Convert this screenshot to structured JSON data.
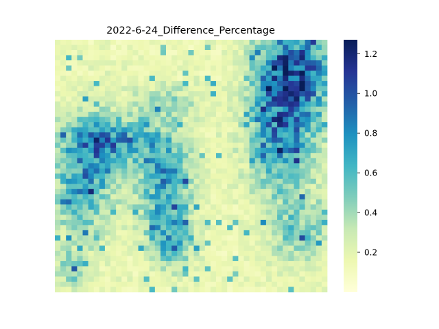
{
  "chart_data": {
    "type": "heatmap",
    "title": "2022-6-24_Difference_Percentage",
    "xlabel": "",
    "ylabel": "",
    "colormap": "YlGnBu",
    "colorbar": {
      "range": [
        0.0,
        1.27
      ],
      "ticks": [
        0.2,
        0.4,
        0.6,
        0.8,
        1.0,
        1.2
      ],
      "tick_labels": [
        "0.2",
        "0.4",
        "0.6",
        "0.8",
        "1.0",
        "1.2"
      ]
    },
    "grid_shape": [
      49,
      49
    ],
    "regions": {
      "background": "0.1 - 0.3",
      "upper_left_block": "up to 0.9",
      "upper_right_block": "up to 1.25",
      "central_band": "up to 0.95",
      "lower_right_block": "up to 0.7"
    },
    "axes_ticks_shown": false,
    "grid": false
  },
  "colors": {
    "stops": [
      "#ffffd9",
      "#edf8b1",
      "#c7e9b4",
      "#7fcdbb",
      "#41b6c4",
      "#1d91c0",
      "#225ea8",
      "#253494",
      "#081d58"
    ]
  }
}
